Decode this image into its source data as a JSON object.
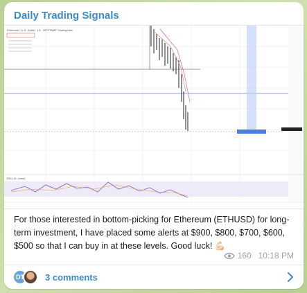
{
  "channel": {
    "name": "Daily Trading Signals"
  },
  "chart_image": {
    "header_text": "Ethereum / U.S. Dollar · 1D · BITSTAMP TradingView",
    "indicator_label": "RSI (14, close)"
  },
  "message": {
    "text": "For those interested in bottom-picking for Ethereum (ETHUSD) for long-term investment, I have placed some alerts at $900, $800, $700, $600, $500 so that I can buy in at these levels. Good luck! 💪🏻",
    "views": "160",
    "time": "10:18 PM"
  },
  "comments": {
    "avatar_initials": "DT",
    "label": "3 comments"
  },
  "colors": {
    "accent": "#3a8cc9",
    "background": "#c8d9a6"
  },
  "icons": [
    "eye-icon",
    "chevron-right-icon"
  ]
}
